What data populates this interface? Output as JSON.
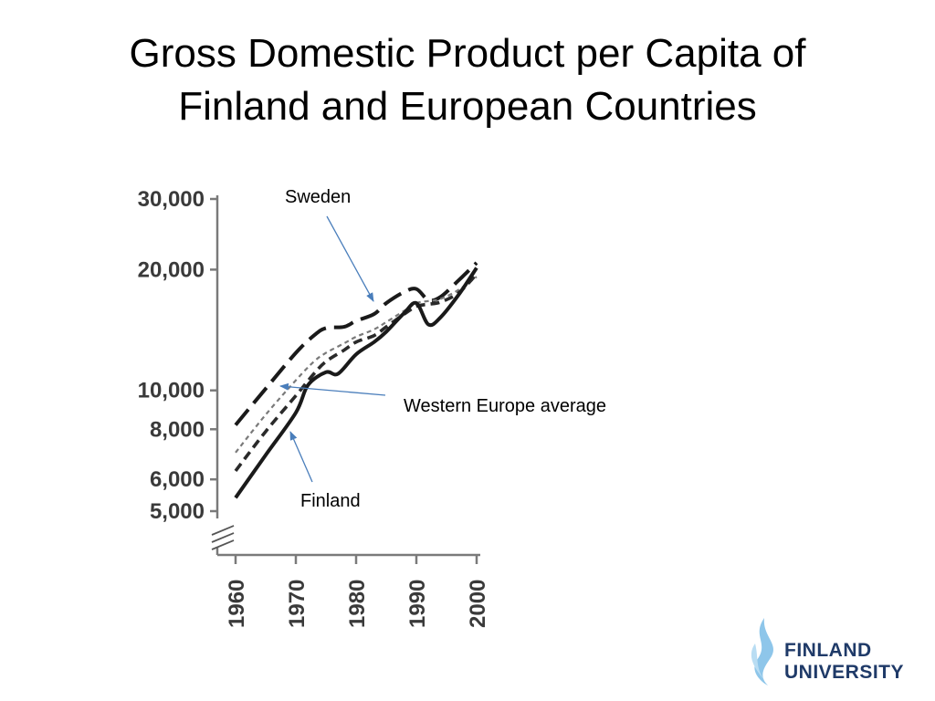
{
  "title_lines": [
    "Gross Domestic Product per Capita of",
    "Finland and European Countries"
  ],
  "annotations": {
    "sweden": "Sweden",
    "western_europe": "Western Europe average",
    "finland": "Finland"
  },
  "logo": {
    "line1": "FINLAND",
    "line2": "UNIVERSITY",
    "colors": [
      "#8ec6ea",
      "#1f3a68"
    ]
  },
  "chart_data": {
    "type": "line",
    "title": "",
    "xlabel": "",
    "ylabel": "",
    "y_scale": "log",
    "ylim": [
      5000,
      30000
    ],
    "xlim": [
      1960,
      2000
    ],
    "y_ticks": [
      {
        "value": 30000,
        "label": "30,000"
      },
      {
        "value": 20000,
        "label": "20,000"
      },
      {
        "value": 10000,
        "label": "10,000"
      },
      {
        "value": 8000,
        "label": "8,000"
      },
      {
        "value": 6000,
        "label": "6,000"
      },
      {
        "value": 5000,
        "label": "5,000"
      }
    ],
    "x_ticks": [
      {
        "value": 1960,
        "label": "1960"
      },
      {
        "value": 1970,
        "label": "1970"
      },
      {
        "value": 1980,
        "label": "1980"
      },
      {
        "value": 1990,
        "label": "1990"
      },
      {
        "value": 2000,
        "label": "2000"
      }
    ],
    "axis_break": true,
    "series": [
      {
        "name": "Sweden",
        "style": "long-dash",
        "x": [
          1960,
          1965,
          1970,
          1973,
          1975,
          1978,
          1980,
          1983,
          1985,
          1988,
          1990,
          1992,
          1994,
          1997,
          2000
        ],
        "y": [
          8200,
          10100,
          12400,
          13700,
          14300,
          14400,
          14900,
          15500,
          16500,
          17600,
          17900,
          16800,
          17100,
          18800,
          20800
        ]
      },
      {
        "name": "Western Europe average",
        "style": "fine-dash",
        "x": [
          1960,
          1965,
          1970,
          1973,
          1975,
          1978,
          1980,
          1983,
          1985,
          1988,
          1990,
          1992,
          1994,
          1997,
          2000
        ],
        "y": [
          7000,
          8700,
          10600,
          11800,
          12400,
          13100,
          13600,
          14200,
          14800,
          15800,
          16500,
          16700,
          16900,
          17800,
          19200
        ]
      },
      {
        "name": "",
        "style": "dash",
        "x": [
          1960,
          1965,
          1970,
          1973,
          1975,
          1978,
          1980,
          1983,
          1985,
          1988,
          1990,
          1992,
          1994,
          1997,
          2000
        ],
        "y": [
          6300,
          7900,
          9700,
          11000,
          11800,
          12600,
          13200,
          13700,
          14400,
          15500,
          16200,
          16400,
          16600,
          17500,
          19500
        ]
      },
      {
        "name": "Finland",
        "style": "solid",
        "x": [
          1960,
          1965,
          1970,
          1972,
          1975,
          1977,
          1980,
          1983,
          1985,
          1988,
          1990,
          1992,
          1994,
          1997,
          2000
        ],
        "y": [
          5400,
          6900,
          8800,
          10300,
          11100,
          11000,
          12300,
          13200,
          14000,
          15600,
          16500,
          14600,
          15200,
          17300,
          20200
        ]
      }
    ]
  }
}
